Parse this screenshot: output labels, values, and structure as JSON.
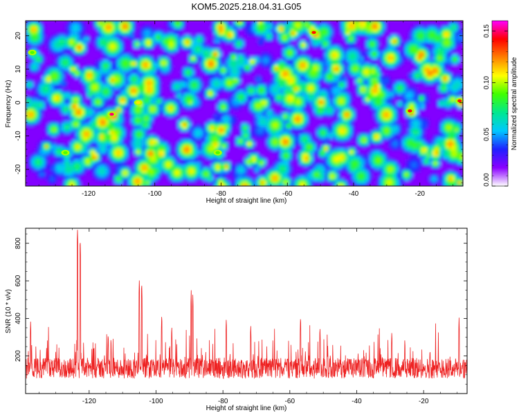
{
  "title": "KOM5.2025.218.04.31.G05",
  "chart_data": [
    {
      "type": "heatmap",
      "xlabel": "Height of straight line (km)",
      "ylabel": "Frequency (Hz)",
      "xlim": [
        -139,
        -7
      ],
      "ylim": [
        -25,
        24.5
      ],
      "x_ticks": [
        -120,
        -100,
        -80,
        -60,
        -40,
        -20
      ],
      "y_ticks": [
        -20,
        -10,
        0,
        10,
        20
      ],
      "colorbar": {
        "label": "Normalized spectral amplitude",
        "range": [
          0.0,
          0.16
        ],
        "ticks": [
          0.0,
          0.05,
          0.1,
          0.15
        ],
        "tick_labels": [
          "0.00",
          "0.05",
          "0.10",
          "0.15"
        ],
        "colormap": [
          "#ffffff",
          "#8a00ff",
          "#2020ff",
          "#00c8ff",
          "#00e890",
          "#40ff00",
          "#ffff00",
          "#ff8000",
          "#ff0000",
          "#ff00ff"
        ]
      },
      "peaks": [
        {
          "x": -113,
          "y": -3.5,
          "value": 0.15
        },
        {
          "x": -52,
          "y": 21,
          "value": 0.14
        },
        {
          "x": -23,
          "y": -2.5,
          "value": 0.14
        },
        {
          "x": -8,
          "y": 0.5,
          "value": 0.14
        },
        {
          "x": -105,
          "y": 0,
          "value": 0.11
        },
        {
          "x": -137,
          "y": 15,
          "value": 0.09
        },
        {
          "x": -81,
          "y": -15,
          "value": 0.09
        },
        {
          "x": -127,
          "y": -15,
          "value": 0.09
        }
      ]
    },
    {
      "type": "line",
      "xlabel": "Height of straight line (km)",
      "ylabel": "SNR (10 * v/v)",
      "xlim": [
        -139,
        -7
      ],
      "ylim": [
        0,
        880
      ],
      "x_ticks": [
        -120,
        -100,
        -80,
        -60,
        -40,
        -20
      ],
      "y_ticks": [
        200,
        400,
        600,
        800
      ],
      "series_color": "#ee2222",
      "baseline_mean": 135,
      "baseline_spread": 55,
      "peaks": [
        {
          "x": -123.5,
          "y": 880
        },
        {
          "x": -122.7,
          "y": 830
        },
        {
          "x": -105.0,
          "y": 610
        },
        {
          "x": -104.3,
          "y": 600
        },
        {
          "x": -89.5,
          "y": 550
        },
        {
          "x": -89.0,
          "y": 530
        },
        {
          "x": -137.5,
          "y": 395
        },
        {
          "x": -114.3,
          "y": 330
        },
        {
          "x": -98.3,
          "y": 430
        },
        {
          "x": -95.3,
          "y": 370
        },
        {
          "x": -79.0,
          "y": 410
        },
        {
          "x": -71.7,
          "y": 375
        },
        {
          "x": -56.8,
          "y": 420
        },
        {
          "x": -51.0,
          "y": 365
        },
        {
          "x": -29.5,
          "y": 340
        },
        {
          "x": -9.4,
          "y": 410
        }
      ]
    }
  ]
}
